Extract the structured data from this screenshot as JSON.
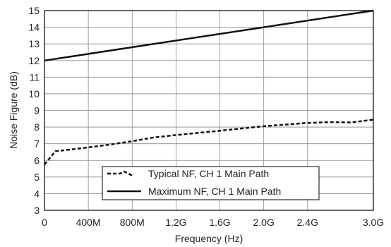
{
  "chart_data": {
    "type": "line",
    "xlabel": "Frequency (Hz)",
    "ylabel": "Noise Figure (dB)",
    "xlim": [
      0,
      3000000000
    ],
    "ylim": [
      3,
      15
    ],
    "x_ticks": [
      {
        "value": 0,
        "label": "0"
      },
      {
        "value": 400000000,
        "label": "400M"
      },
      {
        "value": 800000000,
        "label": "800M"
      },
      {
        "value": 1200000000,
        "label": "1.2G"
      },
      {
        "value": 1600000000,
        "label": "1.6G"
      },
      {
        "value": 2000000000,
        "label": "2.0G"
      },
      {
        "value": 2400000000,
        "label": "2.4G"
      },
      {
        "value": 3000000000,
        "label": "3.0G"
      }
    ],
    "y_ticks": [
      3,
      4,
      5,
      6,
      7,
      8,
      9,
      10,
      11,
      12,
      13,
      14,
      15
    ],
    "grid": true,
    "legend_position": "bottom-center",
    "series": [
      {
        "name": "Typical NF, CH 1 Main Path",
        "style": "dashed",
        "color": "#111111",
        "x": [
          0,
          100000000,
          200000000,
          400000000,
          600000000,
          800000000,
          1000000000,
          1200000000,
          1400000000,
          1600000000,
          1800000000,
          2000000000,
          2200000000,
          2400000000,
          2600000000,
          2800000000,
          3000000000
        ],
        "y": [
          5.75,
          6.55,
          6.62,
          6.78,
          6.95,
          7.15,
          7.38,
          7.52,
          7.65,
          7.78,
          7.92,
          8.05,
          8.15,
          8.25,
          8.3,
          8.28,
          8.45
        ]
      },
      {
        "name": "Maximum NF, CH 1 Main Path",
        "style": "solid",
        "color": "#111111",
        "x": [
          0,
          3000000000
        ],
        "y": [
          12.0,
          15.0
        ]
      }
    ]
  }
}
